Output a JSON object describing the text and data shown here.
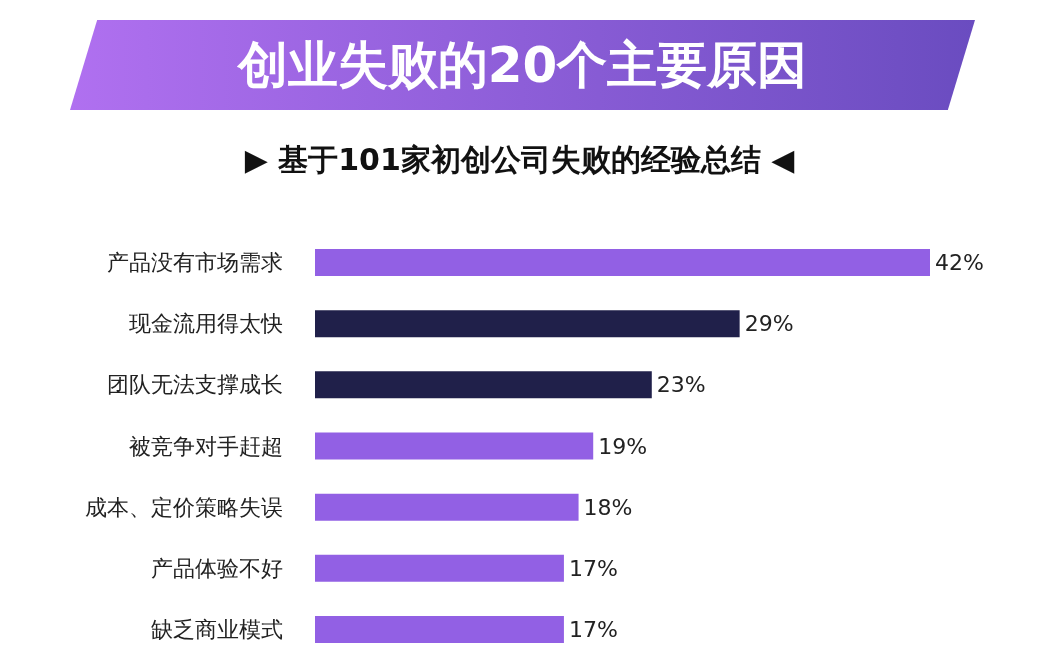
{
  "chart_data": {
    "type": "bar",
    "orientation": "horizontal",
    "title": "创业失败的20个主要原因",
    "subtitle": "▶ 基于101家初创公司失败的经验总结 ◀",
    "categories": [
      "产品没有市场需求",
      "现金流用得太快",
      "团队无法支撑成长",
      "被竞争对手赶超",
      "成本、定价策略失误",
      "产品体验不好",
      "缺乏商业模式"
    ],
    "values": [
      42,
      29,
      23,
      19,
      18,
      17,
      17
    ],
    "colors": [
      "#9260e4",
      "#20204a",
      "#20204a",
      "#9260e4",
      "#9260e4",
      "#9260e4",
      "#9260e4"
    ],
    "value_labels": [
      "42%",
      "29%",
      "23%",
      "19%",
      "18%",
      "17%",
      "17%"
    ]
  }
}
